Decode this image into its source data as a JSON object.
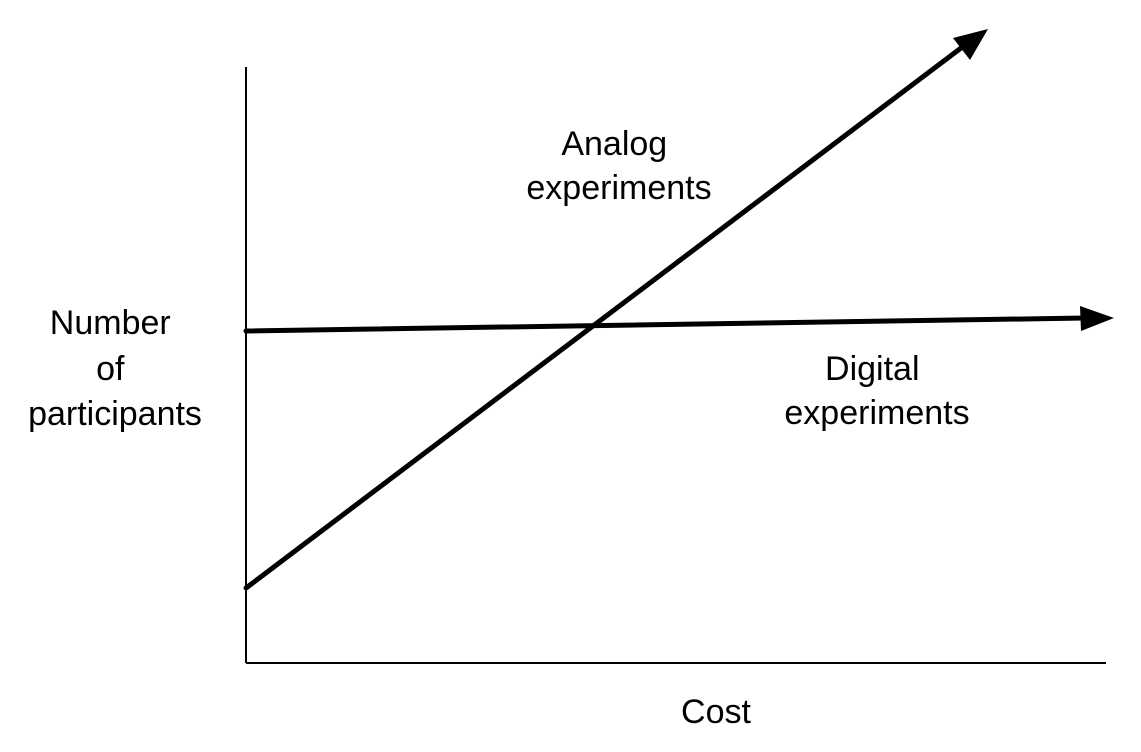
{
  "diagram": {
    "y_axis_label_lines": [
      "Number",
      "of",
      "participants"
    ],
    "x_axis_label": "Cost",
    "lines": [
      {
        "label_lines": [
          "Analog",
          "experiments"
        ],
        "description": "steep rising line with arrowhead"
      },
      {
        "label_lines": [
          "Digital",
          "experiments"
        ],
        "description": "nearly flat line with arrowhead"
      }
    ],
    "colors": {
      "stroke": "#000000",
      "background": "#ffffff"
    }
  }
}
